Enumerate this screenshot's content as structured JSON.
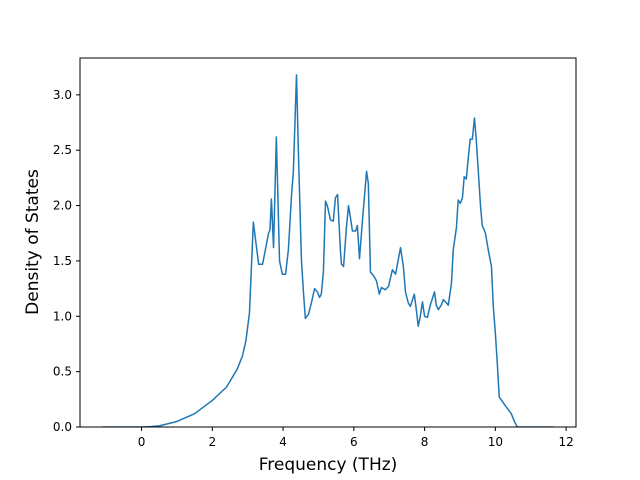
{
  "chart_data": {
    "type": "line",
    "xlabel": "Frequency (THz)",
    "ylabel": "Density of States",
    "color": "#1f77b4",
    "xlim": [
      -1.74,
      12.28
    ],
    "ylim": [
      0,
      3.333
    ],
    "xticks": [
      0,
      2,
      4,
      6,
      8,
      10,
      12
    ],
    "yticks": [
      {
        "value": 0,
        "label": "0.0"
      },
      0.5,
      {
        "value": 1,
        "label": "1.0"
      },
      1.5,
      {
        "value": 2,
        "label": "2.0"
      },
      2.5,
      {
        "value": 3,
        "label": "3.0"
      }
    ],
    "x": [
      -1.1,
      -0.5,
      0,
      0.25,
      0.5,
      1,
      1.5,
      2,
      2.4,
      2.7,
      2.85,
      2.95,
      3.05,
      3.16,
      3.31,
      3.42,
      3.5,
      3.59,
      3.63,
      3.67,
      3.73,
      3.81,
      3.9,
      3.98,
      4.07,
      4.15,
      4.24,
      4.29,
      4.38,
      4.44,
      4.52,
      4.58,
      4.63,
      4.72,
      4.8,
      4.89,
      4.97,
      5.03,
      5.08,
      5.14,
      5.2,
      5.25,
      5.34,
      5.42,
      5.48,
      5.54,
      5.62,
      5.65,
      5.71,
      5.79,
      5.85,
      5.9,
      5.96,
      6.05,
      6.1,
      6.16,
      6.24,
      6.36,
      6.41,
      6.47,
      6.55,
      6.64,
      6.72,
      6.78,
      6.89,
      6.98,
      7.09,
      7.18,
      7.32,
      7.4,
      7.46,
      7.54,
      7.6,
      7.71,
      7.77,
      7.82,
      7.88,
      7.94,
      8.0,
      8.08,
      8.16,
      8.28,
      8.33,
      8.39,
      8.47,
      8.53,
      8.62,
      8.67,
      8.76,
      8.81,
      8.9,
      8.95,
      9.01,
      9.07,
      9.12,
      9.18,
      9.24,
      9.29,
      9.35,
      9.41,
      9.46,
      9.52,
      9.58,
      9.63,
      9.72,
      9.8,
      9.89,
      9.94,
      10.0,
      10.06,
      10.11,
      10.2,
      10.31,
      10.45,
      10.54,
      10.62,
      11.64
    ],
    "values": [
      0,
      0,
      0,
      0.003,
      0.01,
      0.05,
      0.12,
      0.24,
      0.36,
      0.52,
      0.64,
      0.78,
      1.03,
      1.85,
      1.47,
      1.47,
      1.6,
      1.75,
      1.78,
      2.06,
      1.62,
      2.62,
      1.5,
      1.38,
      1.38,
      1.6,
      2.1,
      2.3,
      3.18,
      2.4,
      1.5,
      1.2,
      0.98,
      1.02,
      1.12,
      1.25,
      1.22,
      1.17,
      1.2,
      1.4,
      2.04,
      2.0,
      1.87,
      1.86,
      2.07,
      2.1,
      1.6,
      1.47,
      1.45,
      1.8,
      2.0,
      1.9,
      1.77,
      1.77,
      1.82,
      1.52,
      1.85,
      2.31,
      2.2,
      1.4,
      1.37,
      1.32,
      1.2,
      1.26,
      1.24,
      1.27,
      1.42,
      1.38,
      1.62,
      1.45,
      1.22,
      1.12,
      1.09,
      1.2,
      1.05,
      0.91,
      1.0,
      1.13,
      1.0,
      0.99,
      1.1,
      1.22,
      1.1,
      1.06,
      1.1,
      1.15,
      1.12,
      1.1,
      1.3,
      1.6,
      1.8,
      2.05,
      2.02,
      2.07,
      2.26,
      2.24,
      2.45,
      2.6,
      2.6,
      2.79,
      2.6,
      2.3,
      2.0,
      1.82,
      1.75,
      1.6,
      1.45,
      1.1,
      0.85,
      0.55,
      0.27,
      0.23,
      0.18,
      0.12,
      0.05,
      0,
      0
    ]
  }
}
